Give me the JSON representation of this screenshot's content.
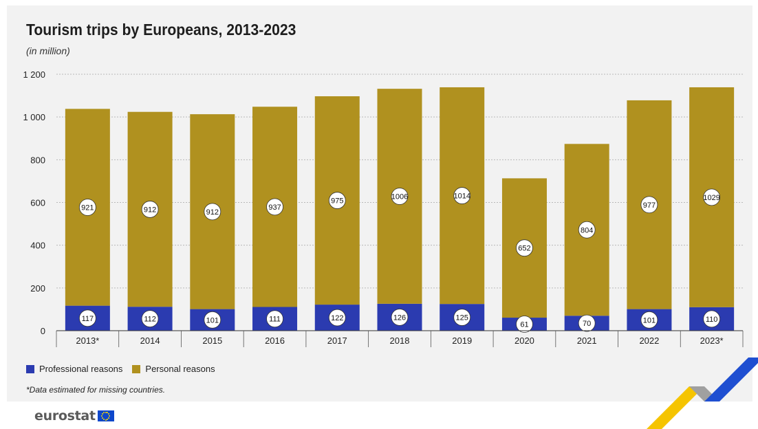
{
  "title": "Tourism trips by Europeans, 2013-2023",
  "subtitle": "(in million)",
  "legend": [
    {
      "label": "Professional reasons",
      "color": "#2b3bb0"
    },
    {
      "label": "Personal reasons",
      "color": "#b0911f"
    }
  ],
  "footnote": "*Data estimated for missing countries.",
  "logo": {
    "text": "eurostat",
    "flag": "eu-flag-icon"
  },
  "chart_data": {
    "type": "bar",
    "stacked": true,
    "categories": [
      "2013*",
      "2014",
      "2015",
      "2016",
      "2017",
      "2018",
      "2019",
      "2020",
      "2021",
      "2022",
      "2023*"
    ],
    "series": [
      {
        "name": "Professional reasons",
        "values": [
          117,
          112,
          101,
          111,
          122,
          126,
          125,
          61,
          70,
          101,
          110
        ],
        "color": "#2b3bb0"
      },
      {
        "name": "Personal reasons",
        "values": [
          921,
          912,
          912,
          937,
          975,
          1006,
          1014,
          652,
          804,
          977,
          1029
        ],
        "color": "#b0911f"
      }
    ],
    "ylim": [
      0,
      1200
    ],
    "yticks": [
      0,
      200,
      400,
      600,
      800,
      1000,
      1200
    ],
    "ytick_labels": [
      "0",
      "200",
      "400",
      "600",
      "800",
      "1 000",
      "1 200"
    ],
    "grid": true,
    "legend_position": "bottom-left"
  }
}
